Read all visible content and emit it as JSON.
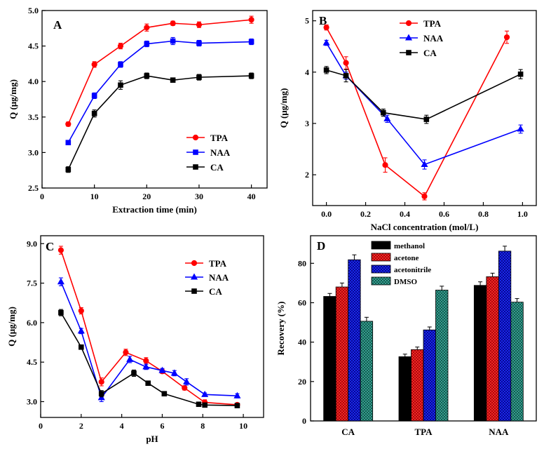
{
  "chart_data": [
    {
      "panel": "A",
      "type": "line",
      "xlabel": "Extraction time (min)",
      "ylabel": "Q (μg/mg)",
      "xlim": [
        0,
        43
      ],
      "ylim": [
        2.5,
        5.0
      ],
      "xticks": [
        0,
        10,
        20,
        30,
        40
      ],
      "yticks": [
        2.5,
        3.0,
        3.5,
        4.0,
        4.5,
        5.0
      ],
      "ytick_decimals": 1,
      "legend_position": "bottom-right",
      "x": [
        5,
        10,
        15,
        20,
        25,
        30,
        40
      ],
      "series": [
        {
          "name": "TPA",
          "color": "#ff0000",
          "marker": "circle",
          "values": [
            3.4,
            4.24,
            4.5,
            4.76,
            4.82,
            4.8,
            4.87
          ],
          "errors": [
            0.03,
            0.04,
            0.04,
            0.05,
            0.03,
            0.04,
            0.05
          ]
        },
        {
          "name": "NAA",
          "color": "#0000ff",
          "marker": "square",
          "values": [
            3.14,
            3.8,
            4.24,
            4.53,
            4.57,
            4.54,
            4.56
          ],
          "errors": [
            0.03,
            0.04,
            0.04,
            0.04,
            0.05,
            0.04,
            0.04
          ]
        },
        {
          "name": "CA",
          "color": "#000000",
          "marker": "square",
          "values": [
            2.76,
            3.55,
            3.95,
            4.08,
            4.02,
            4.06,
            4.08
          ],
          "errors": [
            0.04,
            0.05,
            0.06,
            0.04,
            0.03,
            0.04,
            0.04
          ]
        }
      ]
    },
    {
      "panel": "B",
      "type": "line",
      "xlabel": "NaCl  concentration (mol/L)",
      "ylabel": "Q (μg/mg)",
      "xlim": [
        -0.07,
        1.07
      ],
      "ylim": [
        1.4,
        5.2
      ],
      "xticks": [
        0.0,
        0.2,
        0.4,
        0.6,
        0.8,
        1.0
      ],
      "yticks": [
        2,
        3,
        4,
        5
      ],
      "ytick_decimals": 0,
      "xtick_decimals": 1,
      "legend_position": "top-center",
      "series": [
        {
          "name": "TPA",
          "color": "#ff0000",
          "marker": "circle",
          "x": [
            0,
            0.1,
            0.3,
            0.5,
            0.92
          ],
          "values": [
            4.87,
            4.18,
            2.19,
            1.58,
            4.68
          ],
          "errors": [
            0.05,
            0.12,
            0.14,
            0.07,
            0.12
          ]
        },
        {
          "name": "NAA",
          "color": "#0000ff",
          "marker": "triangle",
          "x": [
            0,
            0.1,
            0.31,
            0.5,
            0.99
          ],
          "values": [
            4.57,
            3.93,
            3.09,
            2.2,
            2.89
          ],
          "errors": [
            0.05,
            0.07,
            0.07,
            0.09,
            0.08
          ]
        },
        {
          "name": "CA",
          "color": "#000000",
          "marker": "square",
          "x": [
            0,
            0.1,
            0.29,
            0.51,
            0.99
          ],
          "values": [
            4.04,
            3.93,
            3.21,
            3.08,
            3.96
          ],
          "errors": [
            0.07,
            0.12,
            0.07,
            0.08,
            0.09
          ]
        }
      ]
    },
    {
      "panel": "C",
      "type": "line",
      "xlabel": "pH",
      "ylabel": "Q (μg/mg)",
      "xlim": [
        0,
        11
      ],
      "ylim": [
        2.4,
        9.3
      ],
      "xticks": [
        0,
        2,
        4,
        6,
        8,
        10
      ],
      "yticks": [
        3.0,
        4.5,
        6.0,
        7.5,
        9.0
      ],
      "ytick_decimals": 1,
      "legend_position": "top-right",
      "series": [
        {
          "name": "TPA",
          "color": "#ff0000",
          "marker": "circle",
          "x": [
            1,
            2,
            3,
            4.2,
            5.2,
            6,
            7.1,
            8.1,
            9.7
          ],
          "values": [
            8.75,
            6.45,
            3.75,
            4.87,
            4.55,
            4.15,
            3.52,
            2.97,
            2.88
          ],
          "errors": [
            0.15,
            0.12,
            0.15,
            0.12,
            0.12,
            0.08,
            0.08,
            0.1,
            0.06
          ]
        },
        {
          "name": "NAA",
          "color": "#0000ff",
          "marker": "triangle",
          "x": [
            1,
            2,
            3,
            4.4,
            5.2,
            6,
            6.6,
            7.2,
            8.1,
            9.7
          ],
          "values": [
            7.55,
            5.68,
            3.15,
            4.6,
            4.32,
            4.18,
            4.08,
            3.75,
            3.27,
            3.22
          ],
          "errors": [
            0.15,
            0.1,
            0.15,
            0.12,
            0.1,
            0.08,
            0.1,
            0.12,
            0.06,
            0.08
          ]
        },
        {
          "name": "CA",
          "color": "#000000",
          "marker": "square",
          "x": [
            1,
            2,
            3,
            4.6,
            5.3,
            6.1,
            7.8,
            8.1,
            9.7
          ],
          "values": [
            6.38,
            5.07,
            3.3,
            4.08,
            3.7,
            3.3,
            2.9,
            2.87,
            2.85
          ],
          "errors": [
            0.12,
            0.07,
            0.12,
            0.12,
            0.06,
            0.08,
            0.08,
            0.06,
            0.05
          ]
        }
      ]
    },
    {
      "panel": "D",
      "type": "bar",
      "xlabel": "",
      "ylabel": "Recovery (%)",
      "ylim": [
        0,
        94
      ],
      "yticks": [
        0,
        20,
        40,
        60,
        80
      ],
      "legend_position": "top-left",
      "categories": [
        "CA",
        "TPA",
        "NAA"
      ],
      "series": [
        {
          "name": "methanol",
          "color": "#000000",
          "fill": "solid",
          "values": [
            63.2,
            32.6,
            68.8
          ],
          "errors": [
            1.5,
            1.3,
            1.8
          ]
        },
        {
          "name": "acetone",
          "color": "#e02020",
          "fill": "crosshatch",
          "values": [
            68.0,
            36.2,
            73.2
          ],
          "errors": [
            2.0,
            1.3,
            1.8
          ]
        },
        {
          "name": "acetonitrile",
          "color": "#0010e0",
          "fill": "crosshatch",
          "values": [
            81.8,
            46.2,
            86.2
          ],
          "errors": [
            2.5,
            1.5,
            2.5
          ]
        },
        {
          "name": "DMSO",
          "color": "#2a9a8a",
          "fill": "crosshatch",
          "values": [
            50.6,
            66.4,
            60.3
          ],
          "errors": [
            2.0,
            2.0,
            1.8
          ]
        }
      ]
    }
  ]
}
